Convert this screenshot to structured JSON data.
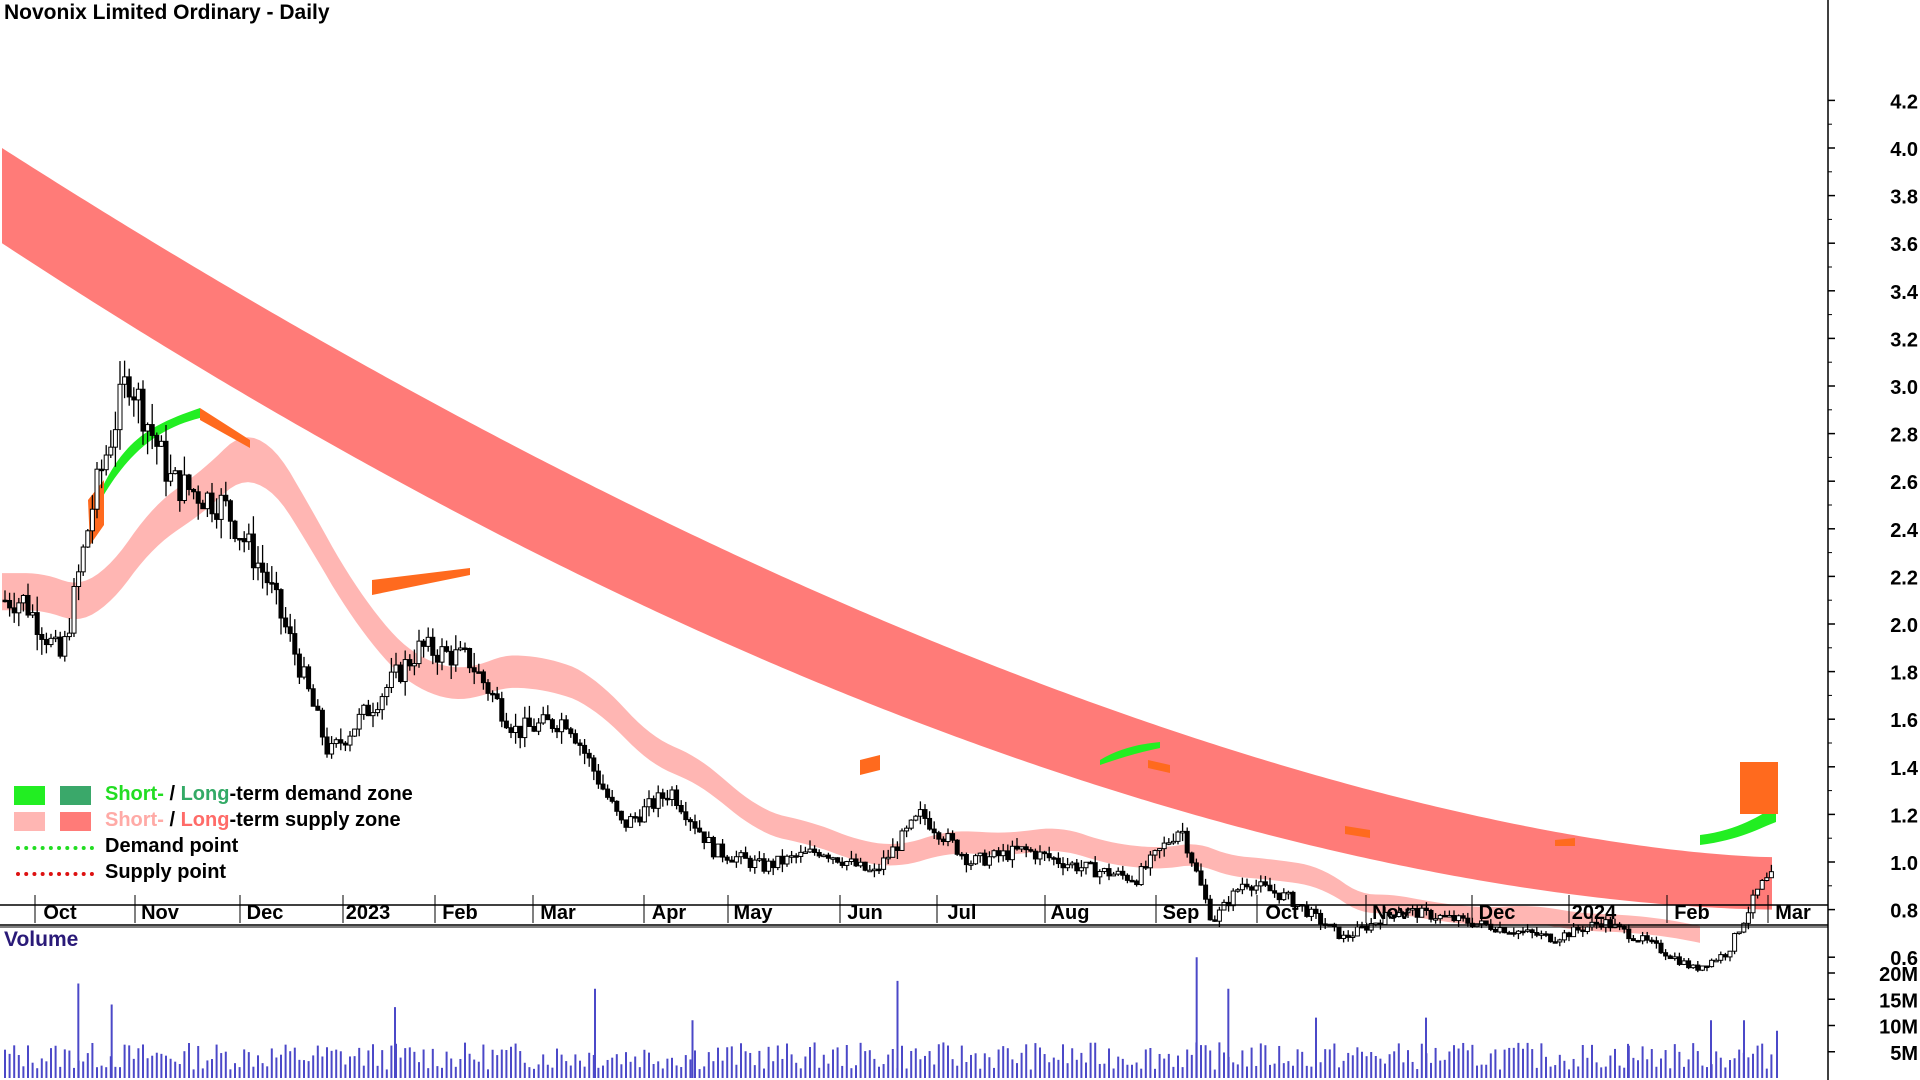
{
  "title": "Novonix Limited Ordinary - Daily",
  "volume_label": "Volume",
  "legend": {
    "demand_short": "Short-",
    "demand_sep": " / ",
    "demand_long": "Long",
    "demand_rest": "-term demand zone",
    "supply_short": "Short-",
    "supply_sep": " / ",
    "supply_long": "Long",
    "supply_rest": "-term supply zone",
    "demand_point": "Demand point",
    "supply_point": "Supply point"
  },
  "colors": {
    "short_demand": "#22ee22",
    "long_demand": "#3aa86a",
    "short_supply": "#ffb6b3",
    "long_supply": "#ff7b78",
    "orange_overlap": "#ff6a1e",
    "demand_point": "#22dd22",
    "supply_point": "#dd1111",
    "volume": "#4b48c8",
    "candle": "#000000"
  },
  "chart_data": [
    {
      "type": "candlestick",
      "title": "Novonix Limited Ordinary - Daily",
      "ylim": [
        0.45,
        4.2
      ],
      "yticks": [
        "0.6",
        "0.8",
        "1.0",
        "1.2",
        "1.4",
        "1.6",
        "1.8",
        "2.0",
        "2.2",
        "2.4",
        "2.6",
        "2.8",
        "3.0",
        "3.2",
        "3.4",
        "3.6",
        "3.8",
        "4.0",
        "4.2"
      ],
      "xticks": [
        "Oct",
        "Nov",
        "Dec",
        "2023",
        "Feb",
        "Mar",
        "Apr",
        "May",
        "Jun",
        "Jul",
        "Aug",
        "Sep",
        "Oct",
        "Nov",
        "Dec",
        "2024",
        "Feb",
        "Mar"
      ],
      "close_approx": [
        {
          "x": "Sep 2022",
          "y": 2.1
        },
        {
          "x": "Oct 2022",
          "y": 1.85
        },
        {
          "x": "Oct 2022",
          "y": 2.55
        },
        {
          "x": "Oct 2022",
          "y": 3.05
        },
        {
          "x": "Nov 2022",
          "y": 2.6
        },
        {
          "x": "Nov 2022",
          "y": 2.5
        },
        {
          "x": "Dec 2022",
          "y": 2.2
        },
        {
          "x": "Dec 2022",
          "y": 1.85
        },
        {
          "x": "Dec 2022",
          "y": 1.45
        },
        {
          "x": "Jan 2023",
          "y": 1.65
        },
        {
          "x": "Jan 2023",
          "y": 1.9
        },
        {
          "x": "Feb 2023",
          "y": 1.85
        },
        {
          "x": "Feb 2023",
          "y": 1.55
        },
        {
          "x": "Mar 2023",
          "y": 1.6
        },
        {
          "x": "Mar 2023",
          "y": 1.15
        },
        {
          "x": "Apr 2023",
          "y": 1.3
        },
        {
          "x": "Apr 2023",
          "y": 1.05
        },
        {
          "x": "May 2023",
          "y": 0.98
        },
        {
          "x": "May 2023",
          "y": 1.05
        },
        {
          "x": "Jun 2023",
          "y": 0.95
        },
        {
          "x": "Jun 2023",
          "y": 1.2
        },
        {
          "x": "Jul 2023",
          "y": 1.0
        },
        {
          "x": "Jul 2023",
          "y": 1.05
        },
        {
          "x": "Aug 2023",
          "y": 0.98
        },
        {
          "x": "Aug 2023",
          "y": 0.93
        },
        {
          "x": "Sep 2023",
          "y": 1.15
        },
        {
          "x": "Sep 2023",
          "y": 0.75
        },
        {
          "x": "Sep 2023",
          "y": 0.92
        },
        {
          "x": "Oct 2023",
          "y": 0.85
        },
        {
          "x": "Oct 2023",
          "y": 0.68
        },
        {
          "x": "Nov 2023",
          "y": 0.8
        },
        {
          "x": "Nov 2023",
          "y": 0.76
        },
        {
          "x": "Dec 2023",
          "y": 0.72
        },
        {
          "x": "Dec 2023",
          "y": 0.68
        },
        {
          "x": "Jan 2024",
          "y": 0.75
        },
        {
          "x": "Jan 2024",
          "y": 0.65
        },
        {
          "x": "Feb 2024",
          "y": 0.55
        },
        {
          "x": "Feb 2024",
          "y": 0.62
        },
        {
          "x": "Feb 2024",
          "y": 0.9
        },
        {
          "x": "Mar 2024",
          "y": 0.95
        }
      ],
      "zones": [
        {
          "name": "Long-term supply zone",
          "x_start": "Sep 2022",
          "x_end": "Mar 2024",
          "upper_start": 4.0,
          "lower_start": 3.6,
          "upper_end": 1.02,
          "lower_end": 0.8
        },
        {
          "name": "Short-term supply zone",
          "x_start": "Sep 2022",
          "x_end": "Feb 2024",
          "upper_start": 2.35,
          "lower_start": 2.2,
          "upper_end": 0.62,
          "lower_end": 0.58
        },
        {
          "name": "Short-term demand zone",
          "x_start": "Feb 2024",
          "x_end": "Mar 2024",
          "upper_start": 0.62,
          "lower_start": 0.6,
          "upper_end": 0.8,
          "lower_end": 0.74
        }
      ]
    },
    {
      "type": "bar",
      "title": "Volume",
      "yticks": [
        "5M",
        "10M",
        "15M",
        "20M"
      ],
      "ylim": [
        0,
        24000000
      ],
      "spikes": [
        {
          "x": "Oct 2022",
          "y": 18000000
        },
        {
          "x": "Oct 2022",
          "y": 14000000
        },
        {
          "x": "Jan 2023",
          "y": 13500000
        },
        {
          "x": "Mar 2023",
          "y": 17000000
        },
        {
          "x": "Apr 2023",
          "y": 11000000
        },
        {
          "x": "Jun 2023",
          "y": 18500000
        },
        {
          "x": "Sep 2023",
          "y": 23000000
        },
        {
          "x": "Sep 2023",
          "y": 17000000
        },
        {
          "x": "Oct 2023",
          "y": 11500000
        },
        {
          "x": "Nov 2023",
          "y": 11500000
        },
        {
          "x": "Jan 2024",
          "y": 6500000
        },
        {
          "x": "Feb 2024",
          "y": 11000000
        },
        {
          "x": "Feb 2024",
          "y": 11000000
        },
        {
          "x": "Mar 2024",
          "y": 9000000
        }
      ],
      "typical": 4000000
    }
  ]
}
